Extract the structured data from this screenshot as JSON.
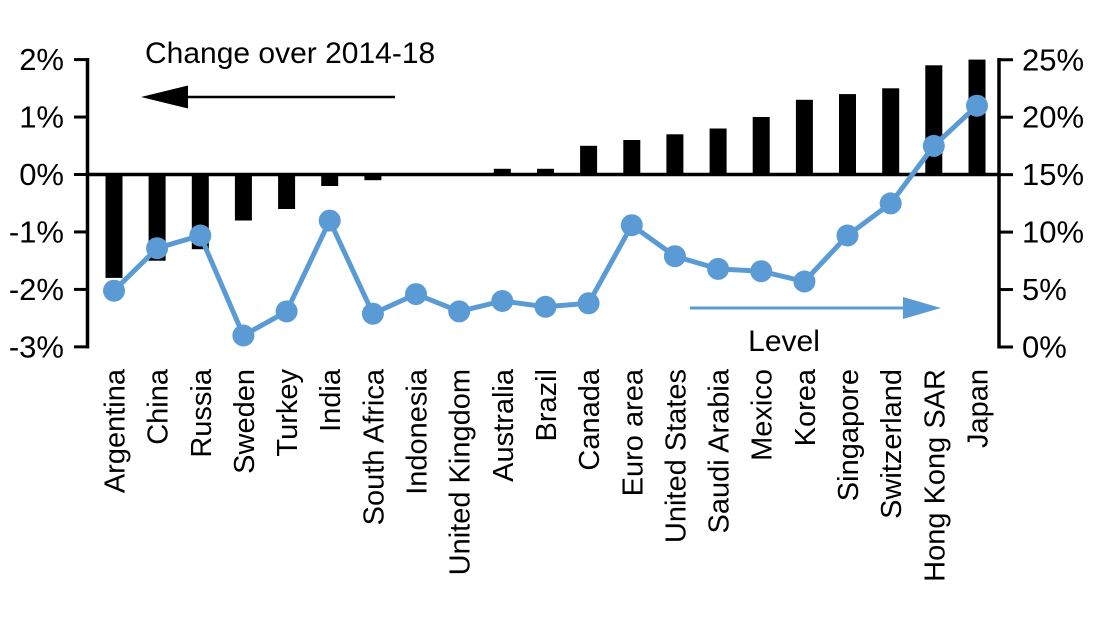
{
  "chart_data": {
    "type": "bar+line combo",
    "categories": [
      "Argentina",
      "China",
      "Russia",
      "Sweden",
      "Turkey",
      "India",
      "South Africa",
      "Indonesia",
      "United Kingdom",
      "Australia",
      "Brazil",
      "Canada",
      "Euro area",
      "United States",
      "Saudi Arabia",
      "Mexico",
      "Korea",
      "Singapore",
      "Switzerland",
      "Hong Kong SAR",
      "Japan"
    ],
    "series": [
      {
        "name": "Change over 2014-18",
        "type": "bar",
        "axis": "left",
        "color": "#000000",
        "unit": "%",
        "values": [
          -1.8,
          -1.5,
          -1.3,
          -0.8,
          -0.6,
          -0.2,
          -0.1,
          0,
          0,
          0.1,
          0.1,
          0.5,
          0.6,
          0.7,
          0.8,
          1.0,
          1.3,
          1.4,
          1.5,
          1.9,
          2.0
        ]
      },
      {
        "name": "Level",
        "type": "line",
        "axis": "right",
        "color": "#5b9bd5",
        "unit": "%",
        "values": [
          4.9,
          8.6,
          9.7,
          1.0,
          3.1,
          11.0,
          2.9,
          4.6,
          3.1,
          4.0,
          3.5,
          3.8,
          10.6,
          7.9,
          6.8,
          6.6,
          5.7,
          9.7,
          12.5,
          17.5,
          21.0
        ]
      }
    ],
    "left_axis": {
      "labels": [
        "2%",
        "1%",
        "0%",
        "-1%",
        "-2%",
        "-3%"
      ],
      "values": [
        2,
        1,
        0,
        -1,
        -2,
        -3
      ],
      "range": [
        -3,
        2
      ],
      "side": "left"
    },
    "right_axis": {
      "labels": [
        "25%",
        "20%",
        "15%",
        "10%",
        "5%",
        "0%"
      ],
      "values": [
        25,
        20,
        15,
        10,
        5,
        0
      ],
      "range": [
        0,
        25
      ],
      "side": "right"
    },
    "annotations": {
      "left": {
        "text": "Change over 2014-18",
        "arrow_direction": "left",
        "color": "#000000"
      },
      "right": {
        "text": "Level",
        "arrow_direction": "right",
        "color": "#5b9bd5"
      }
    },
    "legend_position": "none",
    "grid": "off"
  }
}
